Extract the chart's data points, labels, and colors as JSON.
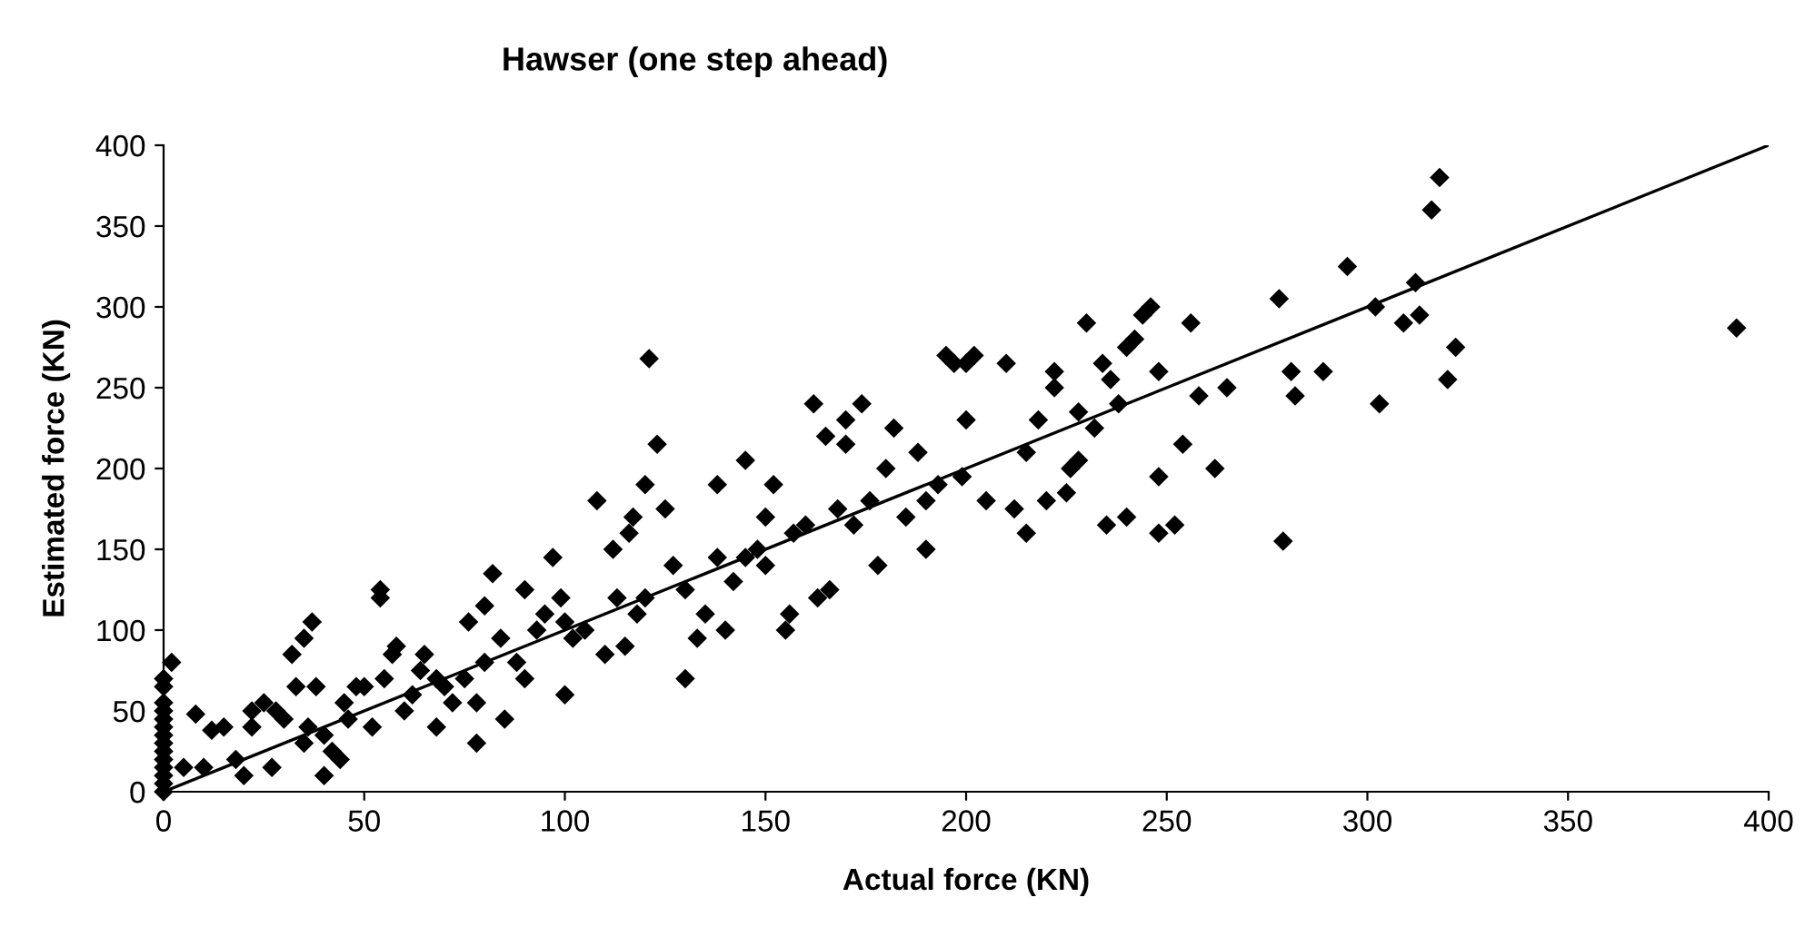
{
  "chart_data": {
    "type": "scatter",
    "title": "Hawser (one step ahead)",
    "xlabel": "Actual force (KN)",
    "ylabel": "Estimated force (KN)",
    "xlim": [
      0,
      400
    ],
    "ylim": [
      0,
      400
    ],
    "xticks": [
      0,
      50,
      100,
      150,
      200,
      250,
      300,
      350,
      400
    ],
    "yticks": [
      0,
      50,
      100,
      150,
      200,
      250,
      300,
      350,
      400
    ],
    "grid": false,
    "legend": false,
    "series": [
      {
        "color": "#000000",
        "marker": "diamond",
        "x": [
          0,
          0,
          0,
          0,
          0,
          0,
          0,
          0,
          0,
          0,
          0,
          0,
          0,
          0,
          2,
          5,
          8,
          10,
          12,
          15,
          18,
          20,
          22,
          22,
          25,
          27,
          28,
          30,
          32,
          33,
          35,
          35,
          36,
          37,
          38,
          40,
          40,
          42,
          44,
          45,
          46,
          48,
          50,
          52,
          54,
          54,
          55,
          57,
          58,
          60,
          62,
          64,
          65,
          68,
          68,
          70,
          72,
          75,
          76,
          78,
          78,
          80,
          80,
          82,
          84,
          85,
          88,
          90,
          90,
          93,
          95,
          97,
          99,
          100,
          100,
          102,
          105,
          108,
          110,
          112,
          113,
          115,
          116,
          117,
          118,
          120,
          120,
          121,
          123,
          125,
          127,
          130,
          130,
          133,
          135,
          138,
          138,
          140,
          142,
          145,
          145,
          148,
          150,
          150,
          152,
          155,
          156,
          157,
          160,
          162,
          163,
          165,
          166,
          168,
          170,
          170,
          172,
          174,
          176,
          178,
          180,
          182,
          185,
          188,
          190,
          190,
          193,
          195,
          197,
          199,
          200,
          200,
          202,
          205,
          210,
          212,
          215,
          215,
          218,
          220,
          222,
          222,
          225,
          226,
          228,
          228,
          230,
          232,
          234,
          235,
          236,
          238,
          240,
          240,
          242,
          244,
          246,
          248,
          248,
          248,
          252,
          254,
          256,
          258,
          262,
          265,
          278,
          279,
          281,
          282,
          289,
          295,
          302,
          303,
          309,
          312,
          313,
          316,
          318,
          320,
          322,
          392
        ],
        "values": [
          0,
          5,
          10,
          15,
          20,
          25,
          30,
          35,
          40,
          45,
          50,
          55,
          65,
          70,
          80,
          15,
          48,
          15,
          38,
          40,
          20,
          10,
          50,
          40,
          55,
          15,
          50,
          45,
          85,
          65,
          95,
          30,
          40,
          105,
          65,
          10,
          35,
          25,
          20,
          55,
          45,
          65,
          65,
          40,
          120,
          125,
          70,
          85,
          90,
          50,
          60,
          75,
          85,
          40,
          70,
          65,
          55,
          70,
          105,
          30,
          55,
          115,
          80,
          135,
          95,
          45,
          80,
          70,
          125,
          100,
          110,
          145,
          120,
          60,
          105,
          95,
          100,
          180,
          85,
          150,
          120,
          90,
          160,
          170,
          110,
          120,
          190,
          268,
          215,
          175,
          140,
          70,
          125,
          95,
          110,
          145,
          190,
          100,
          130,
          145,
          205,
          150,
          140,
          170,
          190,
          100,
          110,
          160,
          165,
          240,
          120,
          220,
          125,
          175,
          230,
          215,
          165,
          240,
          180,
          140,
          200,
          225,
          170,
          210,
          150,
          180,
          190,
          270,
          265,
          195,
          230,
          265,
          270,
          180,
          265,
          175,
          210,
          160,
          230,
          180,
          250,
          260,
          185,
          200,
          205,
          235,
          290,
          225,
          265,
          165,
          255,
          240,
          170,
          275,
          280,
          295,
          300,
          160,
          195,
          260,
          165,
          215,
          290,
          245,
          200,
          250,
          305,
          155,
          260,
          245,
          260,
          325,
          300,
          240,
          290,
          315,
          295,
          360,
          380,
          255,
          275,
          287
        ]
      },
      {
        "type": "line",
        "color": "#000000",
        "marker": "none",
        "line_style": "solid",
        "x": [
          0,
          400
        ],
        "values": [
          0,
          400
        ]
      }
    ]
  }
}
